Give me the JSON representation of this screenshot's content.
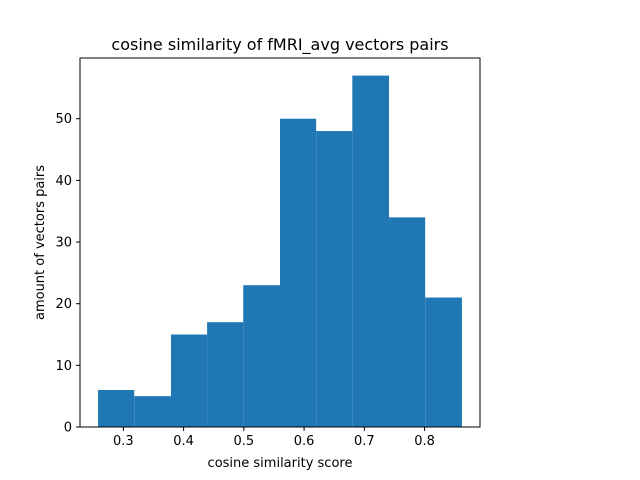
{
  "chart_data": {
    "type": "bar",
    "title": "cosine similarity of fMRI_avg vectors pairs",
    "xlabel": "cosine similarity score",
    "ylabel": "amount of vectors pairs",
    "xlim": [
      0.228,
      0.892
    ],
    "ylim": [
      0,
      59.85
    ],
    "xticks": [
      {
        "value": 0.3,
        "label": "0.3"
      },
      {
        "value": 0.4,
        "label": "0.4"
      },
      {
        "value": 0.5,
        "label": "0.5"
      },
      {
        "value": 0.6,
        "label": "0.6"
      },
      {
        "value": 0.7,
        "label": "0.7"
      },
      {
        "value": 0.8,
        "label": "0.8"
      }
    ],
    "yticks": [
      {
        "value": 0,
        "label": "0"
      },
      {
        "value": 10,
        "label": "10"
      },
      {
        "value": 20,
        "label": "20"
      },
      {
        "value": 30,
        "label": "30"
      },
      {
        "value": 40,
        "label": "40"
      },
      {
        "value": 50,
        "label": "50"
      }
    ],
    "bins": [
      {
        "x0": 0.258,
        "x1": 0.318,
        "count": 6
      },
      {
        "x0": 0.318,
        "x1": 0.379,
        "count": 5
      },
      {
        "x0": 0.379,
        "x1": 0.439,
        "count": 15
      },
      {
        "x0": 0.439,
        "x1": 0.499,
        "count": 17
      },
      {
        "x0": 0.499,
        "x1": 0.56,
        "count": 23
      },
      {
        "x0": 0.56,
        "x1": 0.62,
        "count": 50
      },
      {
        "x0": 0.62,
        "x1": 0.68,
        "count": 48
      },
      {
        "x0": 0.68,
        "x1": 0.741,
        "count": 57
      },
      {
        "x0": 0.741,
        "x1": 0.801,
        "count": 34
      },
      {
        "x0": 0.801,
        "x1": 0.862,
        "count": 21
      }
    ],
    "bar_color": "#1f77b4",
    "grid": false,
    "legend": "none"
  }
}
